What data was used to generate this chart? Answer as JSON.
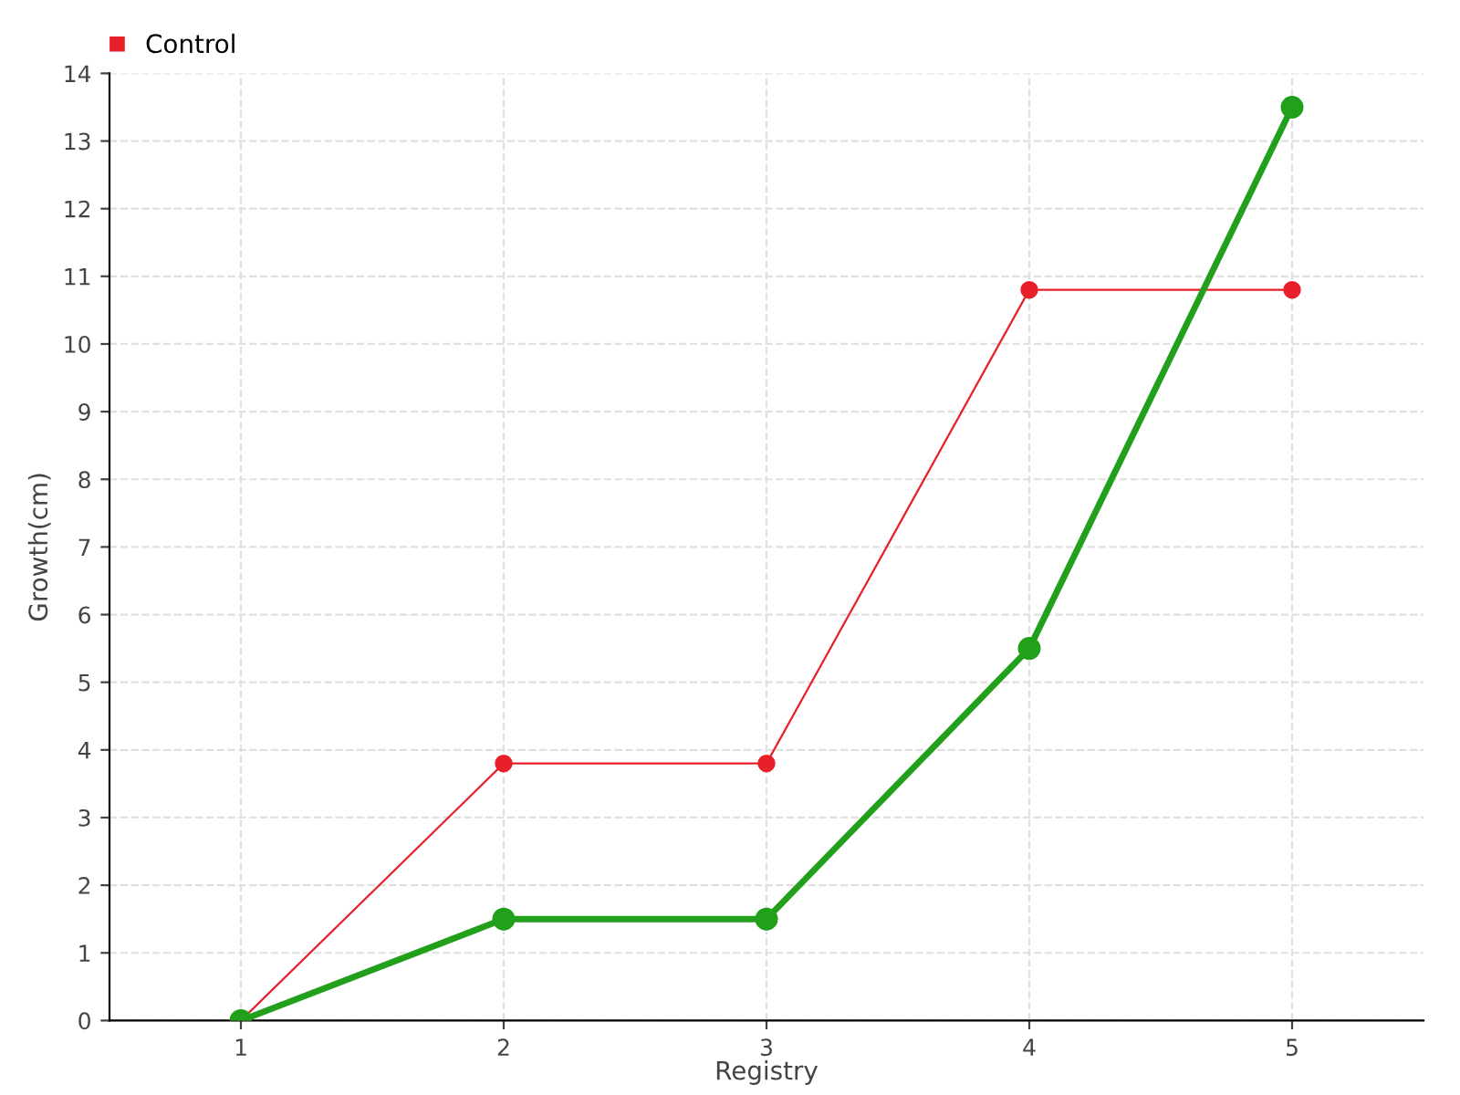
{
  "chart_data": {
    "type": "line",
    "xlabel": "Registry",
    "ylabel": "Growth(cm)",
    "x": [
      1,
      2,
      3,
      4,
      5
    ],
    "series": [
      {
        "color": "#22a01c",
        "values": [
          0,
          1.5,
          1.5,
          5.5,
          13.5
        ]
      },
      {
        "name": "Control",
        "color": "#e8202a",
        "values": [
          0,
          3.8,
          3.8,
          10.8,
          10.8
        ]
      }
    ],
    "xlim": [
      0.5,
      5.5
    ],
    "xticks": [
      1,
      2,
      3,
      4,
      5
    ],
    "ylim": [
      0,
      14
    ],
    "yticks": [
      0,
      1,
      2,
      3,
      4,
      5,
      6,
      7,
      8,
      9,
      10,
      11,
      12,
      13,
      14
    ],
    "grid": true,
    "legend": "top left",
    "marker": "circle",
    "line_style": "solid"
  }
}
